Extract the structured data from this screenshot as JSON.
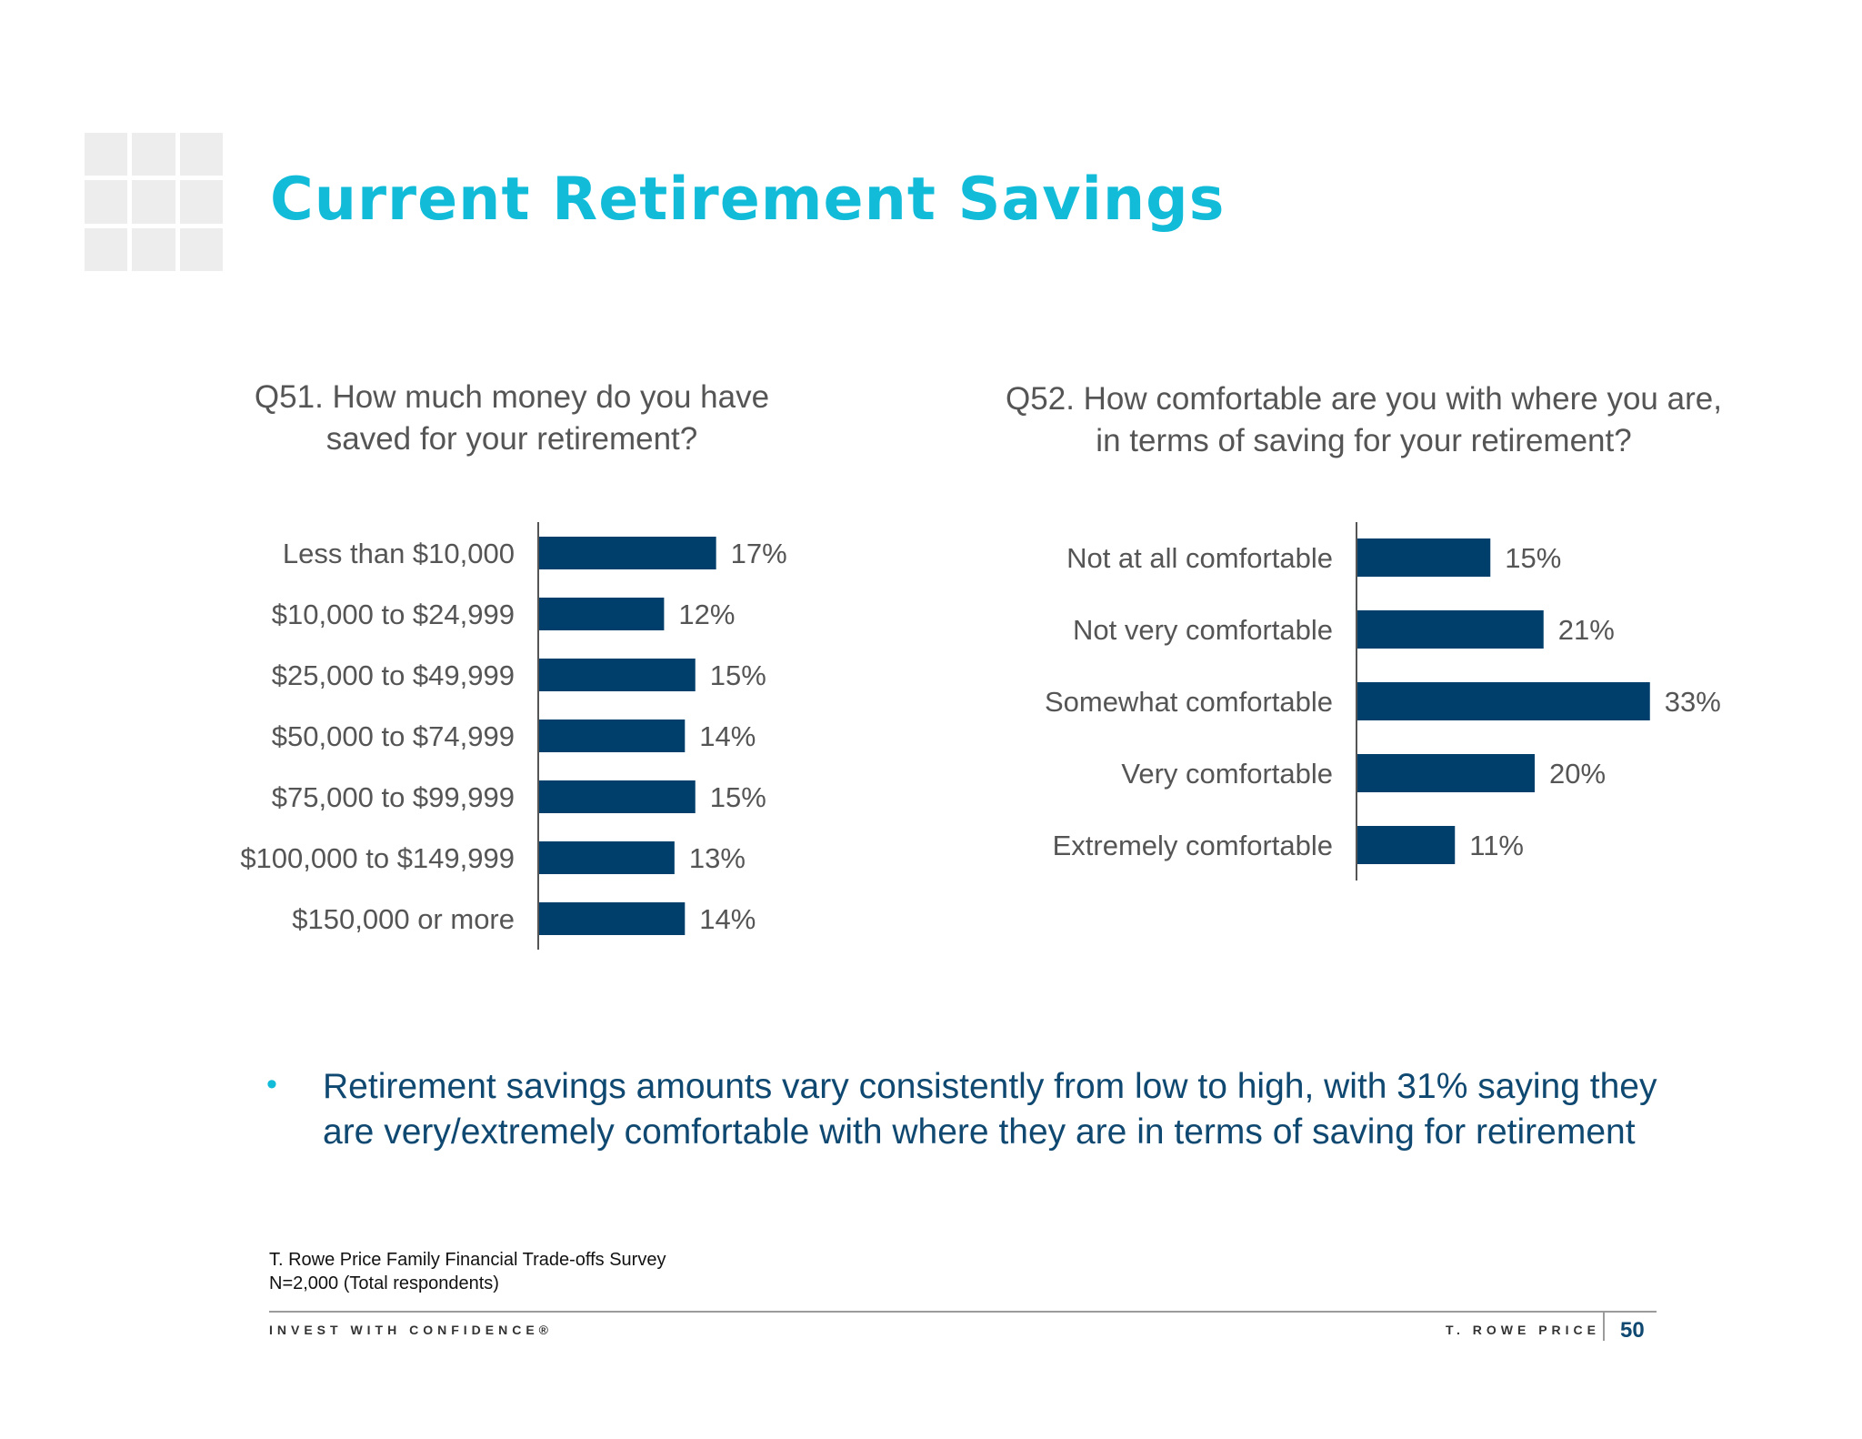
{
  "slide": {
    "title": "Current Retirement Savings",
    "bullet": "Retirement savings amounts vary consistently from low to high, with 31% saying they are very/extremely comfortable with where they are in terms of saving for retirement",
    "source_line1": "T. Rowe Price Family Financial Trade-offs Survey",
    "source_line2": "N=2,000 (Total respondents)",
    "tagline": "INVEST WITH CONFIDENCE®",
    "brand": "T. ROWE PRICE",
    "page_number": "50"
  },
  "colors": {
    "title": "#12bcd9",
    "bar": "#003f6b",
    "label": "#555555",
    "bullet_text": "#0f4870",
    "axis": "#555555"
  },
  "chart_data": [
    {
      "type": "bar",
      "orientation": "horizontal",
      "title": "Q51. How much money do you have saved for your retirement?",
      "categories": [
        "Less than $10,000",
        "$10,000 to $24,999",
        "$25,000 to $49,999",
        "$50,000 to $74,999",
        "$75,000 to $99,999",
        "$100,000 to $149,999",
        "$150,000 or more"
      ],
      "values": [
        17,
        12,
        15,
        14,
        15,
        13,
        14
      ],
      "value_labels": [
        "17%",
        "12%",
        "15%",
        "14%",
        "15%",
        "13%",
        "14%"
      ],
      "unit": "%",
      "grid": false,
      "legend": "none"
    },
    {
      "type": "bar",
      "orientation": "horizontal",
      "title": "Q52. How comfortable are you with where you are, in terms of saving for your retirement?",
      "categories": [
        "Not at all comfortable",
        "Not very comfortable",
        "Somewhat comfortable",
        "Very comfortable",
        "Extremely comfortable"
      ],
      "values": [
        15,
        21,
        33,
        20,
        11
      ],
      "value_labels": [
        "15%",
        "21%",
        "33%",
        "20%",
        "11%"
      ],
      "unit": "%",
      "grid": false,
      "legend": "none"
    }
  ]
}
